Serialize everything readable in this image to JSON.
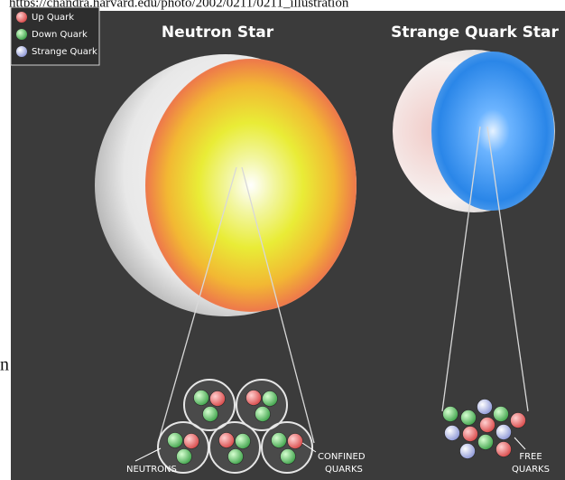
{
  "source_url": "https://chandra.harvard.edu/photo/2002/0211/0211_illustration",
  "side_fragment": "n",
  "legend": [
    {
      "label": "Up Quark"
    },
    {
      "label": "Down Quark"
    },
    {
      "label": "Strange Quark"
    }
  ],
  "panels": [
    {
      "title": "Neutron Star"
    },
    {
      "title": "Strange Quark Star"
    }
  ],
  "labels": {
    "neutrons": "NEUTRONS",
    "confined_quarks": [
      "CONFINED",
      "QUARKS"
    ],
    "free_quarks": [
      "FREE",
      "QUARKS"
    ]
  }
}
